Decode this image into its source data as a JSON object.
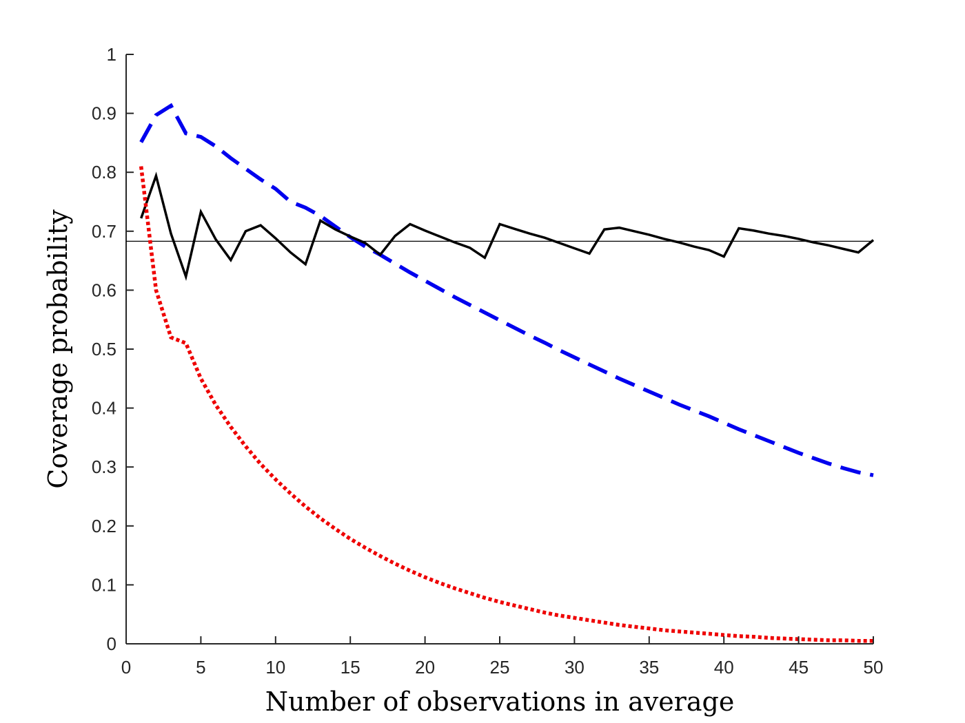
{
  "chart_data": {
    "type": "line",
    "title": "",
    "xlabel": "Number of observations in average",
    "ylabel": "Coverage probability",
    "xlim": [
      0,
      50
    ],
    "ylim": [
      0,
      1
    ],
    "xticks": [
      0,
      5,
      10,
      15,
      20,
      25,
      30,
      35,
      40,
      45,
      50
    ],
    "xtick_labels": [
      "0",
      "5",
      "10",
      "15",
      "20",
      "25",
      "30",
      "35",
      "40",
      "45",
      "50"
    ],
    "yticks": [
      0,
      0.1,
      0.2,
      0.3,
      0.4,
      0.5,
      0.6,
      0.7,
      0.8,
      0.9,
      1
    ],
    "ytick_labels": [
      "0",
      "0.1",
      "0.2",
      "0.3",
      "0.4",
      "0.5",
      "0.6",
      "0.7",
      "0.8",
      "0.9",
      "1"
    ],
    "grid": false,
    "reference_line": {
      "y": 0.683,
      "color": "#000000",
      "style": "solid-thin"
    },
    "series": [
      {
        "name": "black-solid",
        "color": "#000000",
        "style": "solid",
        "x": [
          1,
          2,
          3,
          4,
          5,
          6,
          7,
          8,
          9,
          10,
          11,
          12,
          13,
          14,
          15,
          16,
          17,
          18,
          19,
          20,
          21,
          22,
          23,
          24,
          25,
          26,
          27,
          28,
          29,
          30,
          31,
          32,
          33,
          34,
          35,
          36,
          37,
          38,
          39,
          40,
          41,
          42,
          43,
          44,
          45,
          46,
          47,
          48,
          49,
          50
        ],
        "values": [
          0.722,
          0.794,
          0.696,
          0.623,
          0.733,
          0.686,
          0.651,
          0.7,
          0.71,
          0.688,
          0.664,
          0.644,
          0.718,
          0.703,
          0.691,
          0.68,
          0.66,
          0.692,
          0.712,
          0.701,
          0.691,
          0.681,
          0.672,
          0.655,
          0.712,
          0.704,
          0.696,
          0.689,
          0.68,
          0.671,
          0.662,
          0.703,
          0.706,
          0.7,
          0.694,
          0.687,
          0.681,
          0.674,
          0.668,
          0.657,
          0.705,
          0.701,
          0.696,
          0.692,
          0.687,
          0.681,
          0.676,
          0.67,
          0.664,
          0.685
        ]
      },
      {
        "name": "blue-dashed",
        "color": "#0000ee",
        "style": "dashed",
        "x": [
          1,
          2,
          3,
          4,
          5,
          6,
          7,
          8,
          9,
          10,
          11,
          12,
          13,
          14,
          15,
          16,
          17,
          18,
          19,
          20,
          21,
          22,
          23,
          24,
          25,
          26,
          27,
          28,
          29,
          30,
          31,
          32,
          33,
          34,
          35,
          36,
          37,
          38,
          39,
          40,
          41,
          42,
          43,
          44,
          45,
          46,
          47,
          48,
          49,
          50
        ],
        "values": [
          0.851,
          0.897,
          0.913,
          0.866,
          0.86,
          0.844,
          0.824,
          0.806,
          0.788,
          0.772,
          0.75,
          0.74,
          0.726,
          0.708,
          0.69,
          0.674,
          0.66,
          0.645,
          0.63,
          0.616,
          0.602,
          0.588,
          0.575,
          0.562,
          0.549,
          0.536,
          0.523,
          0.511,
          0.498,
          0.486,
          0.474,
          0.462,
          0.45,
          0.439,
          0.428,
          0.417,
          0.406,
          0.396,
          0.386,
          0.375,
          0.364,
          0.354,
          0.344,
          0.334,
          0.324,
          0.315,
          0.306,
          0.298,
          0.291,
          0.286
        ]
      },
      {
        "name": "red-dotted",
        "color": "#ee0000",
        "style": "dotted",
        "x": [
          1,
          2,
          3,
          4,
          5,
          6,
          7,
          8,
          9,
          10,
          11,
          12,
          13,
          14,
          15,
          16,
          17,
          18,
          19,
          20,
          21,
          22,
          23,
          24,
          25,
          26,
          27,
          28,
          29,
          30,
          31,
          32,
          33,
          34,
          35,
          36,
          37,
          38,
          39,
          40,
          41,
          42,
          43,
          44,
          45,
          46,
          47,
          48,
          49,
          50
        ],
        "values": [
          0.81,
          0.6,
          0.52,
          0.51,
          0.45,
          0.405,
          0.368,
          0.335,
          0.305,
          0.279,
          0.255,
          0.233,
          0.213,
          0.195,
          0.178,
          0.163,
          0.149,
          0.136,
          0.124,
          0.113,
          0.103,
          0.094,
          0.086,
          0.078,
          0.071,
          0.065,
          0.059,
          0.053,
          0.048,
          0.044,
          0.04,
          0.036,
          0.032,
          0.029,
          0.026,
          0.023,
          0.021,
          0.019,
          0.017,
          0.015,
          0.013,
          0.012,
          0.01,
          0.009,
          0.008,
          0.007,
          0.006,
          0.006,
          0.005,
          0.005
        ]
      }
    ]
  }
}
